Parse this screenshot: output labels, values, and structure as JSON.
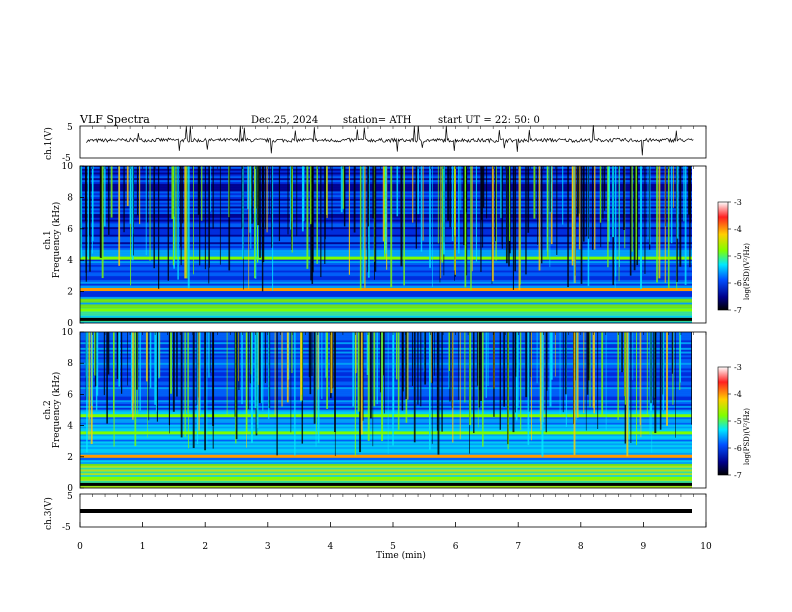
{
  "header": {
    "title": "VLF  Spectra",
    "date": "Dec.25, 2024",
    "station": "station= ATH",
    "start": "start  UT  =    22: 50: 0"
  },
  "colorbar": {
    "label": "log(PSD)(V²/Hz)",
    "ticks": [
      "-3",
      "-4",
      "-5",
      "-6",
      "-7"
    ],
    "stops": [
      "#ffffff",
      "#ff2020",
      "#ffcf00",
      "#7fff00",
      "#00e8ff",
      "#0050ff",
      "#00008a",
      "#000000"
    ]
  },
  "chart_data": [
    {
      "type": "line",
      "name": "ch1-waveform",
      "ylabel": "ch.1(V)",
      "ylim": [
        -5,
        5
      ],
      "yticks": [
        "5",
        "-5"
      ],
      "xlim": [
        0,
        10
      ],
      "baseline": 0,
      "description_of_values": "noisy trace around 0 V",
      "x": [
        0.1,
        0.5,
        1.0,
        1.5,
        2.0,
        2.5,
        3.0,
        3.5,
        4.0,
        4.5,
        5.0,
        5.5,
        6.0,
        6.5,
        7.0,
        7.5,
        8.0,
        8.5,
        9.0,
        9.5,
        9.8
      ],
      "y": [
        0.4,
        0.5,
        0.6,
        0.6,
        0.5,
        0.6,
        0.5,
        0.6,
        0.5,
        0.6,
        0.5,
        0.5,
        0.6,
        0.5,
        0.5,
        0.6,
        0.5,
        0.6,
        0.5,
        0.6,
        0.5
      ]
    },
    {
      "type": "heatmap",
      "name": "ch1-spectrogram",
      "ylabel": "ch.1\nFrequency  (kHz)",
      "ylim": [
        0,
        10
      ],
      "yticks": [
        "10",
        "8",
        "6",
        "4",
        "2",
        "0"
      ],
      "xlim": [
        0,
        9.8
      ],
      "zlabel": "log(PSD)(V²/Hz)",
      "zlim": [
        -7,
        -3
      ],
      "bright_bands_khz": [
        2.1,
        0.8,
        4.1
      ],
      "dark_gaps_khz": [
        0.2
      ]
    },
    {
      "type": "heatmap",
      "name": "ch2-spectrogram",
      "ylabel": "ch.2\nFrequency  (kHz)",
      "ylim": [
        0,
        10
      ],
      "yticks": [
        "10",
        "8",
        "6",
        "4",
        "2",
        "0"
      ],
      "xlim": [
        0,
        9.8
      ],
      "zlabel": "log(PSD)(V²/Hz)",
      "zlim": [
        -7,
        -3
      ],
      "bright_bands_khz": [
        2.0,
        3.5,
        4.6,
        0.6
      ],
      "dark_gaps_khz": [
        0.2
      ]
    },
    {
      "type": "line",
      "name": "ch3-waveform",
      "ylabel": "ch.3(V)",
      "ylim": [
        -5,
        5
      ],
      "yticks": [
        "5",
        "-5"
      ],
      "xlim": [
        0,
        10
      ],
      "xlabel": "Time  (min)",
      "xticks": [
        "0",
        "1",
        "2",
        "3",
        "4",
        "5",
        "6",
        "7",
        "8",
        "9",
        "10"
      ],
      "x": [
        0,
        9.8
      ],
      "y": [
        -1.5,
        -1.5
      ]
    }
  ]
}
